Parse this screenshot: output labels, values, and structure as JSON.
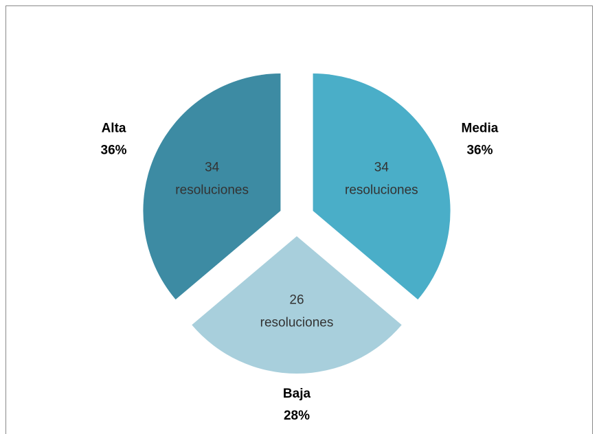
{
  "chart_data": {
    "type": "pie",
    "categories": [
      "Media",
      "Baja",
      "Alta"
    ],
    "values": [
      34,
      26,
      34
    ],
    "value_labels": [
      "34 resoluciones",
      "26 resoluciones",
      "34 resoluciones"
    ],
    "percent_labels": [
      "36%",
      "28%",
      "36%"
    ],
    "colors": [
      "#4aaec8",
      "#a8cfdc",
      "#3d8ba3"
    ]
  }
}
